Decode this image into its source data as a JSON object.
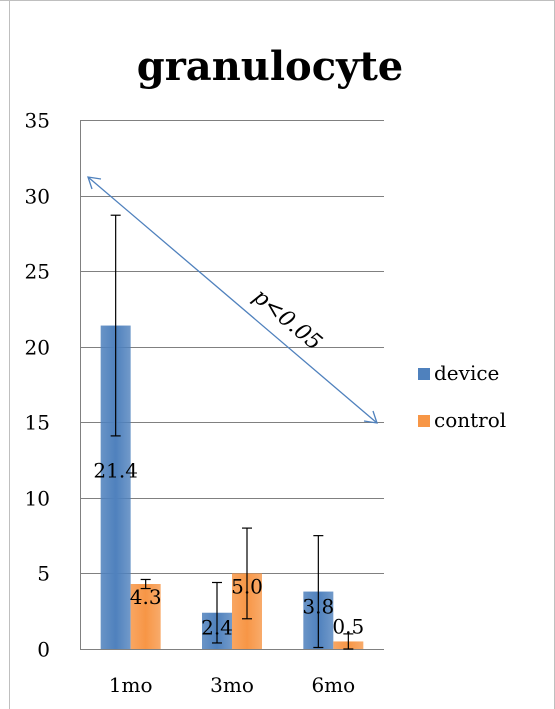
{
  "chart_data": {
    "type": "bar",
    "title": "granulocyte",
    "xlabel": "",
    "ylabel": "",
    "categories": [
      "1mo",
      "3mo",
      "6mo"
    ],
    "ylim": [
      0,
      35
    ],
    "yticks": [
      "0",
      "5",
      "10",
      "15",
      "20",
      "25",
      "30",
      "35"
    ],
    "grid": true,
    "legend_position": "right",
    "series": [
      {
        "name": "device",
        "color": "#4f81bd",
        "values": [
          21.4,
          2.4,
          3.8
        ],
        "labels": [
          "21.4",
          "2.4",
          "3.8"
        ],
        "error": [
          7.3,
          2.0,
          3.7
        ]
      },
      {
        "name": "control",
        "color": "#f79646",
        "values": [
          4.3,
          5.0,
          0.5
        ],
        "labels": [
          "4.3",
          "5.0",
          "0.5"
        ],
        "error": [
          0.3,
          3.0,
          0.5
        ]
      }
    ],
    "annotation": "p<0.05"
  }
}
